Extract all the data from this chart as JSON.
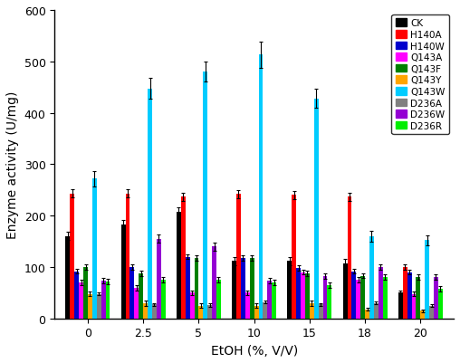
{
  "x_labels": [
    "0",
    "2.5",
    "5",
    "10",
    "15",
    "18",
    "20"
  ],
  "x_positions": [
    0,
    1,
    2,
    3,
    4,
    5,
    6
  ],
  "series": {
    "CK": [
      160,
      183,
      207,
      112,
      112,
      107,
      50
    ],
    "H140A": [
      243,
      243,
      237,
      242,
      240,
      237,
      100
    ],
    "H140W": [
      92,
      100,
      120,
      117,
      98,
      92,
      90
    ],
    "Q143A": [
      70,
      60,
      50,
      50,
      90,
      75,
      48
    ],
    "Q143F": [
      100,
      88,
      118,
      117,
      88,
      83,
      80
    ],
    "Q143Y": [
      48,
      30,
      25,
      25,
      30,
      18,
      15
    ],
    "Q143W": [
      272,
      447,
      480,
      513,
      428,
      160,
      152
    ],
    "D236A": [
      48,
      27,
      26,
      32,
      27,
      30,
      25
    ],
    "D236W": [
      73,
      155,
      140,
      73,
      82,
      100,
      80
    ],
    "D236R": [
      72,
      75,
      75,
      70,
      65,
      80,
      58
    ]
  },
  "errors": {
    "CK": [
      8,
      8,
      10,
      8,
      8,
      8,
      5
    ],
    "H140A": [
      8,
      8,
      8,
      8,
      8,
      8,
      5
    ],
    "H140W": [
      5,
      5,
      5,
      5,
      5,
      5,
      5
    ],
    "Q143A": [
      5,
      5,
      5,
      5,
      5,
      5,
      5
    ],
    "Q143F": [
      5,
      5,
      5,
      5,
      5,
      5,
      5
    ],
    "Q143Y": [
      5,
      5,
      5,
      5,
      5,
      3,
      3
    ],
    "Q143W": [
      15,
      20,
      20,
      25,
      18,
      10,
      10
    ],
    "D236A": [
      3,
      3,
      3,
      3,
      3,
      3,
      3
    ],
    "D236W": [
      5,
      8,
      8,
      5,
      5,
      5,
      5
    ],
    "D236R": [
      5,
      5,
      5,
      5,
      5,
      5,
      5
    ]
  },
  "colors": {
    "CK": "#000000",
    "H140A": "#ff0000",
    "H140W": "#0000cd",
    "Q143A": "#ff00ff",
    "Q143F": "#008000",
    "Q143Y": "#ffa500",
    "Q143W": "#00ccff",
    "D236A": "#808080",
    "D236W": "#9400d3",
    "D236R": "#00ee00"
  },
  "ylabel": "Enzyme activity (U/mg)",
  "xlabel": "EtOH (%, V/V)",
  "ylim": [
    0,
    600
  ],
  "yticks": [
    0,
    100,
    200,
    300,
    400,
    500,
    600
  ],
  "figsize": [
    5.08,
    4.02
  ],
  "dpi": 100
}
